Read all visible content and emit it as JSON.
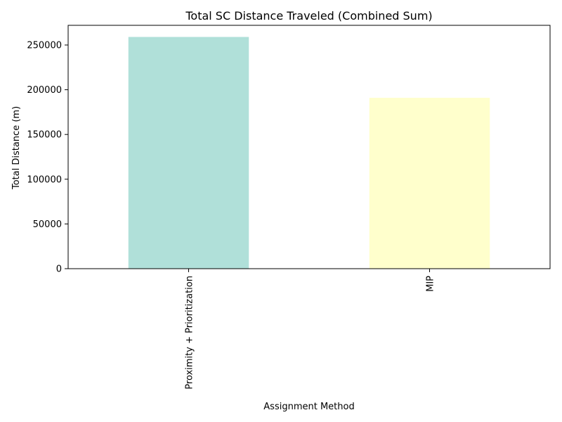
{
  "chart_data": {
    "type": "bar",
    "title": "Total SC Distance Traveled (Combined Sum)",
    "xlabel": "Assignment Method",
    "ylabel": "Total Distance (m)",
    "categories": [
      "Proximity + Prioritization",
      "MIP"
    ],
    "values": [
      259000,
      191000
    ],
    "colors": [
      "#b0e0d9",
      "#ffffcc"
    ],
    "ylim": [
      0,
      272000
    ],
    "yticks": [
      0,
      50000,
      100000,
      150000,
      200000,
      250000
    ],
    "ytick_labels": [
      "0",
      "50000",
      "100000",
      "150000",
      "200000",
      "250000"
    ],
    "grid": false,
    "legend": "none"
  }
}
